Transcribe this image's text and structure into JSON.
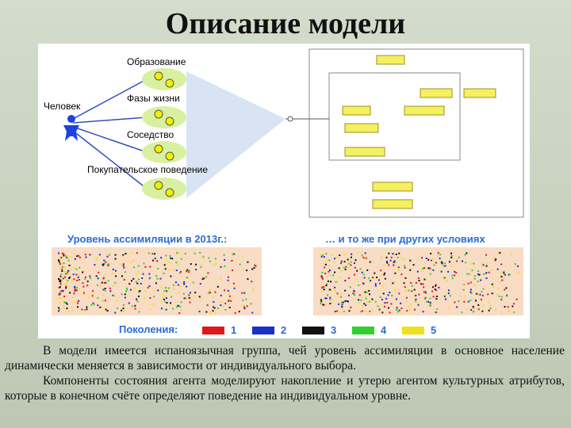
{
  "title": "Описание модели",
  "diagram": {
    "agent": "Человек",
    "components": [
      "Образование",
      "Фазы жизни",
      "Соседство",
      "Покупательское поведение"
    ]
  },
  "plots": {
    "left_title": "Уровень ассимиляции в 2013г.:",
    "right_title": "… и то же при других условиях",
    "legend": {
      "label": "Поколения:",
      "items": [
        {
          "name": "1",
          "color": "#e01818"
        },
        {
          "name": "2",
          "color": "#1830c8"
        },
        {
          "name": "3",
          "color": "#101010"
        },
        {
          "name": "4",
          "color": "#30d030"
        },
        {
          "name": "5",
          "color": "#f0e020"
        }
      ]
    }
  },
  "text": {
    "paragraphs": [
      "В модели имеется испаноязычная группа, чей уровень ассимиляции в основное население динамически меняется в зависимости от индивидуального выбора.",
      "Компоненты состояния агента моделируют накопление и утерю агентом культурных атрибутов, которые в конечном счёте определяют поведение на индивидуальном уровне."
    ]
  }
}
